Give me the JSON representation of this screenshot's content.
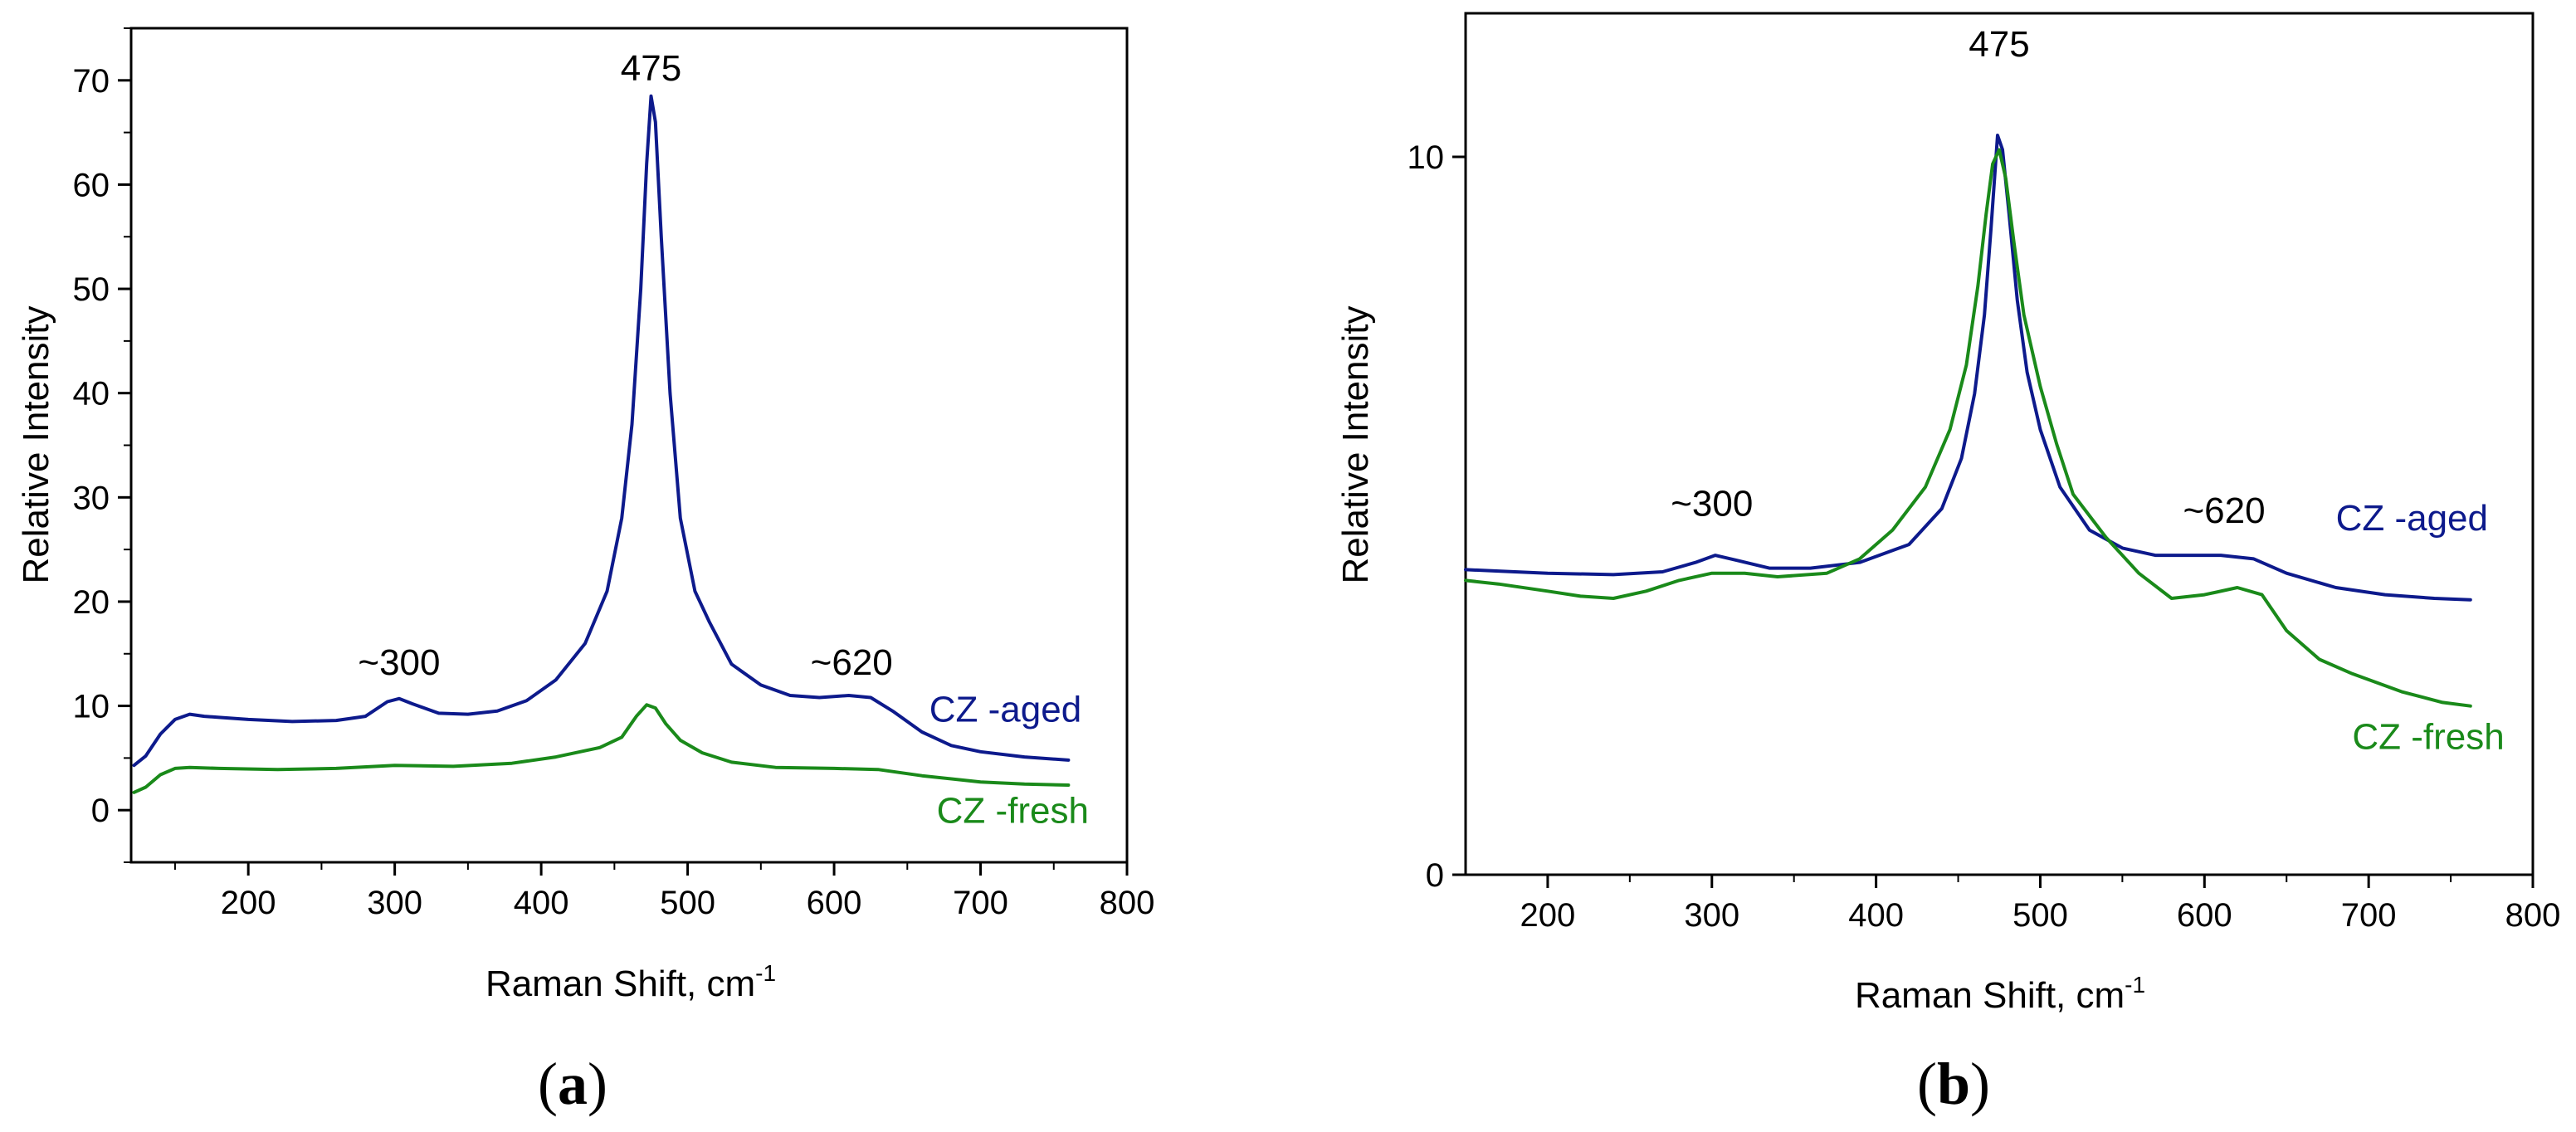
{
  "figure": {
    "colors": {
      "aged": "#0d1a8c",
      "fresh": "#1a8a1a",
      "axis": "#000000"
    }
  },
  "chart_data": [
    {
      "id": "a",
      "type": "line",
      "panel_label": {
        "open": "(",
        "letter": "a",
        "close": ")"
      },
      "xlabel": {
        "main": "Raman Shift, cm",
        "sup": "-1"
      },
      "ylabel": "Relative Intensity",
      "xlim": [
        120,
        800
      ],
      "ylim": [
        -5,
        75
      ],
      "xticks": [
        200,
        300,
        400,
        500,
        600,
        700,
        800
      ],
      "yticks": [
        0,
        10,
        20,
        30,
        40,
        50,
        60,
        70
      ],
      "grid": false,
      "annotations": [
        {
          "text": "475",
          "x": 475,
          "y": 70
        },
        {
          "text": "~300",
          "x": 303,
          "y": 13
        },
        {
          "text": "~620",
          "x": 612,
          "y": 13
        }
      ],
      "series": [
        {
          "name": "CZ -aged",
          "label_at": {
            "x": 665,
            "y": 8.5
          },
          "color_key": "aged",
          "points": [
            [
              122,
              4.3
            ],
            [
              130,
              5.2
            ],
            [
              140,
              7.3
            ],
            [
              150,
              8.7
            ],
            [
              160,
              9.2
            ],
            [
              170,
              9.0
            ],
            [
              180,
              8.9
            ],
            [
              200,
              8.7
            ],
            [
              230,
              8.5
            ],
            [
              260,
              8.6
            ],
            [
              280,
              9.0
            ],
            [
              295,
              10.4
            ],
            [
              303,
              10.7
            ],
            [
              312,
              10.2
            ],
            [
              330,
              9.3
            ],
            [
              350,
              9.2
            ],
            [
              370,
              9.5
            ],
            [
              390,
              10.5
            ],
            [
              410,
              12.5
            ],
            [
              430,
              16.0
            ],
            [
              445,
              21.0
            ],
            [
              455,
              28.0
            ],
            [
              462,
              37.0
            ],
            [
              468,
              50.0
            ],
            [
              472,
              62.0
            ],
            [
              475,
              68.5
            ],
            [
              478,
              66.0
            ],
            [
              482,
              55.0
            ],
            [
              488,
              40.0
            ],
            [
              495,
              28.0
            ],
            [
              505,
              21.0
            ],
            [
              515,
              18.0
            ],
            [
              530,
              14.0
            ],
            [
              550,
              12.0
            ],
            [
              570,
              11.0
            ],
            [
              590,
              10.8
            ],
            [
              610,
              11.0
            ],
            [
              625,
              10.8
            ],
            [
              640,
              9.5
            ],
            [
              660,
              7.5
            ],
            [
              680,
              6.2
            ],
            [
              700,
              5.6
            ],
            [
              730,
              5.1
            ],
            [
              760,
              4.8
            ]
          ]
        },
        {
          "name": "CZ -fresh",
          "label_at": {
            "x": 670,
            "y": -1.2
          },
          "color_key": "fresh",
          "points": [
            [
              122,
              1.7
            ],
            [
              130,
              2.2
            ],
            [
              140,
              3.4
            ],
            [
              150,
              4.0
            ],
            [
              160,
              4.1
            ],
            [
              180,
              4.0
            ],
            [
              220,
              3.9
            ],
            [
              260,
              4.0
            ],
            [
              300,
              4.3
            ],
            [
              340,
              4.2
            ],
            [
              380,
              4.5
            ],
            [
              410,
              5.1
            ],
            [
              440,
              6.0
            ],
            [
              455,
              7.0
            ],
            [
              465,
              9.0
            ],
            [
              472,
              10.1
            ],
            [
              478,
              9.8
            ],
            [
              485,
              8.3
            ],
            [
              495,
              6.7
            ],
            [
              510,
              5.5
            ],
            [
              530,
              4.6
            ],
            [
              560,
              4.1
            ],
            [
              600,
              4.0
            ],
            [
              630,
              3.9
            ],
            [
              660,
              3.3
            ],
            [
              700,
              2.7
            ],
            [
              730,
              2.5
            ],
            [
              760,
              2.4
            ]
          ]
        }
      ]
    },
    {
      "id": "b",
      "type": "line",
      "panel_label": {
        "open": "(",
        "letter": "b",
        "close": ")"
      },
      "xlabel": {
        "main": "Raman Shift, cm",
        "sup": "-1"
      },
      "ylabel": "Relative Intensity",
      "xlim": [
        150,
        800
      ],
      "ylim": [
        0,
        12
      ],
      "xticks": [
        200,
        300,
        400,
        500,
        600,
        700,
        800
      ],
      "yticks": [
        0,
        10
      ],
      "grid": false,
      "annotations": [
        {
          "text": "475",
          "x": 475,
          "y": 11.4
        },
        {
          "text": "~300",
          "x": 300,
          "y": 5.0
        },
        {
          "text": "~620",
          "x": 612,
          "y": 4.9
        }
      ],
      "series": [
        {
          "name": "CZ -aged",
          "label_at": {
            "x": 680,
            "y": 4.8
          },
          "color_key": "aged",
          "points": [
            [
              150,
              4.25
            ],
            [
              170,
              4.23
            ],
            [
              200,
              4.2
            ],
            [
              240,
              4.18
            ],
            [
              270,
              4.22
            ],
            [
              290,
              4.35
            ],
            [
              302,
              4.45
            ],
            [
              315,
              4.38
            ],
            [
              335,
              4.27
            ],
            [
              360,
              4.27
            ],
            [
              390,
              4.35
            ],
            [
              420,
              4.6
            ],
            [
              440,
              5.1
            ],
            [
              452,
              5.8
            ],
            [
              460,
              6.7
            ],
            [
              466,
              7.8
            ],
            [
              470,
              9.0
            ],
            [
              474,
              10.3
            ],
            [
              477,
              10.1
            ],
            [
              481,
              9.2
            ],
            [
              486,
              8.0
            ],
            [
              492,
              7.0
            ],
            [
              500,
              6.2
            ],
            [
              512,
              5.4
            ],
            [
              530,
              4.8
            ],
            [
              550,
              4.55
            ],
            [
              570,
              4.45
            ],
            [
              590,
              4.45
            ],
            [
              610,
              4.45
            ],
            [
              630,
              4.4
            ],
            [
              650,
              4.2
            ],
            [
              680,
              4.0
            ],
            [
              710,
              3.9
            ],
            [
              740,
              3.85
            ],
            [
              762,
              3.83
            ]
          ]
        },
        {
          "name": "CZ -fresh",
          "label_at": {
            "x": 690,
            "y": 1.75
          },
          "color_key": "fresh",
          "points": [
            [
              150,
              4.1
            ],
            [
              170,
              4.05
            ],
            [
              200,
              3.95
            ],
            [
              220,
              3.88
            ],
            [
              240,
              3.85
            ],
            [
              260,
              3.95
            ],
            [
              280,
              4.1
            ],
            [
              300,
              4.2
            ],
            [
              320,
              4.2
            ],
            [
              340,
              4.15
            ],
            [
              370,
              4.2
            ],
            [
              390,
              4.4
            ],
            [
              410,
              4.8
            ],
            [
              430,
              5.4
            ],
            [
              445,
              6.2
            ],
            [
              455,
              7.1
            ],
            [
              462,
              8.2
            ],
            [
              467,
              9.2
            ],
            [
              471,
              9.9
            ],
            [
              475,
              10.1
            ],
            [
              479,
              9.7
            ],
            [
              484,
              8.8
            ],
            [
              490,
              7.8
            ],
            [
              500,
              6.8
            ],
            [
              510,
              6.0
            ],
            [
              520,
              5.3
            ],
            [
              540,
              4.7
            ],
            [
              560,
              4.2
            ],
            [
              580,
              3.85
            ],
            [
              600,
              3.9
            ],
            [
              620,
              4.0
            ],
            [
              635,
              3.9
            ],
            [
              650,
              3.4
            ],
            [
              670,
              3.0
            ],
            [
              690,
              2.8
            ],
            [
              720,
              2.55
            ],
            [
              745,
              2.4
            ],
            [
              762,
              2.35
            ]
          ]
        }
      ]
    }
  ]
}
